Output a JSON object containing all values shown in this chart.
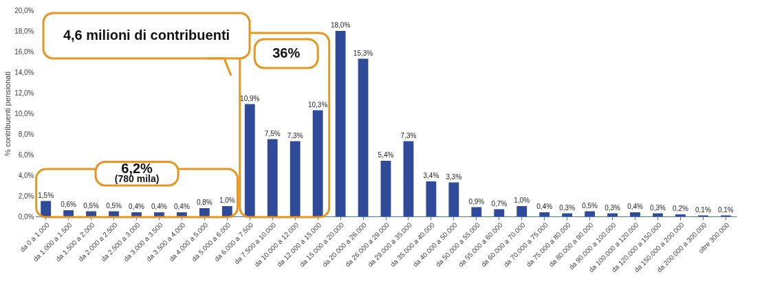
{
  "chart_data": {
    "type": "bar",
    "ylabel": "% contribuenti pensionati",
    "categories": [
      "da 0 a 1.000",
      "da 1.000 a 1.500",
      "da 1.500 a 2.000",
      "da 2.000 a 2.500",
      "da 2.500 a 3.000",
      "da 3.000 a 3.500",
      "da 3.500 a 4.000",
      "da 4.000 a 5.000",
      "da 5.000 a 6.000",
      "da 6.000 a 7.500",
      "da 7.500 a 10.000",
      "da 10.000 a 12.000",
      "da 12.000 a 15.000",
      "da 15.000 a 20.000",
      "da 20.000 a 26.000",
      "da 26.000 a 29.000",
      "da 29.000 a 35.000",
      "da 35.000 a 40.000",
      "da 40.000 a 50.000",
      "da 50.000 a 55.000",
      "da 55.000 a 60.000",
      "da 60.000 a 70.000",
      "da 70.000 a 75.000",
      "da 75.000 a 80.000",
      "da 80.000 a 90.000",
      "da 90.000 a 100.000",
      "da 100.000 a 120.000",
      "da 120.000 a 150.000",
      "da 150.000 a 200.000",
      "da 200.000 a 300.000",
      "oltre 300.000"
    ],
    "values": [
      1.5,
      0.6,
      0.5,
      0.5,
      0.4,
      0.4,
      0.4,
      0.8,
      1.0,
      10.9,
      7.5,
      7.3,
      10.3,
      18.0,
      15.3,
      5.4,
      7.3,
      3.4,
      3.3,
      0.9,
      0.7,
      1.0,
      0.4,
      0.3,
      0.5,
      0.3,
      0.4,
      0.3,
      0.2,
      0.1,
      0.1
    ],
    "value_labels": [
      "1,5%",
      "0,6%",
      "0,5%",
      "0,5%",
      "0,4%",
      "0,4%",
      "0,4%",
      "0,8%",
      "1,0%",
      "10,9%",
      "7,5%",
      "7,3%",
      "10,3%",
      "18,0%",
      "15,3%",
      "5,4%",
      "7,3%",
      "3,4%",
      "3,3%",
      "0,9%",
      "0,7%",
      "1,0%",
      "0,4%",
      "0,3%",
      "0,5%",
      "0,3%",
      "0,4%",
      "0,3%",
      "0,2%",
      "0,1%",
      "0,1%"
    ],
    "color": "#2e4a99",
    "ylim": [
      0,
      20
    ],
    "yticks": [
      {
        "value": 0,
        "label": "0,0%"
      },
      {
        "value": 2,
        "label": "2,0%"
      },
      {
        "value": 4,
        "label": "4,0%"
      },
      {
        "value": 6,
        "label": "6,0%"
      },
      {
        "value": 8,
        "label": "8,0%"
      },
      {
        "value": 10,
        "label": "10,0%"
      },
      {
        "value": 12,
        "label": "12,0%"
      },
      {
        "value": 14,
        "label": "14,0%"
      },
      {
        "value": 16,
        "label": "16,0%"
      },
      {
        "value": 18,
        "label": "18,0%"
      },
      {
        "value": 20,
        "label": "20,0%"
      }
    ],
    "grid": false,
    "annotations": [
      "4,6 milioni di contribuenti",
      "36%",
      "6,2%",
      "(780 mila)"
    ]
  }
}
